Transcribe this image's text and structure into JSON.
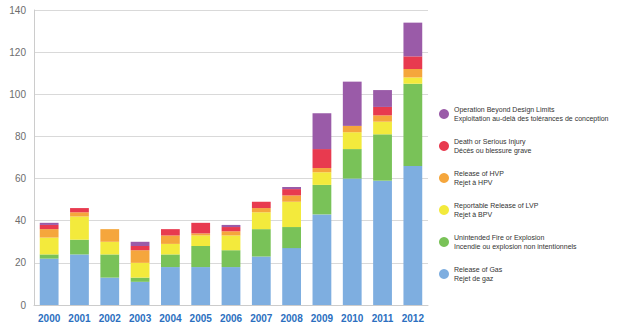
{
  "chart_data": {
    "type": "bar",
    "stacked": true,
    "grid": true,
    "legend": "right",
    "categories": [
      "2000",
      "2001",
      "2002",
      "2003",
      "2004",
      "2005",
      "2006",
      "2007",
      "2008",
      "2009",
      "2010",
      "2011",
      "2012"
    ],
    "ylim": [
      0,
      140
    ],
    "yticks": [
      0,
      20,
      40,
      60,
      80,
      100,
      120,
      140
    ],
    "series": [
      {
        "name": "Release of Gas\nRejet de gaz",
        "color": "#7eaee0",
        "values": [
          22,
          24,
          13,
          11,
          18,
          18,
          18,
          23,
          27,
          43,
          60,
          59,
          66
        ]
      },
      {
        "name": "Unintended Fire or Explosion\nIncendie ou explosion non intentionnels",
        "color": "#79c258",
        "values": [
          2,
          7,
          11,
          2,
          6,
          10,
          8,
          13,
          10,
          14,
          14,
          22,
          39
        ]
      },
      {
        "name": "Reportable Release of LVP\nRejet à BPV",
        "color": "#f3ea3c",
        "values": [
          8,
          11,
          6,
          7,
          5,
          5,
          7,
          8,
          12,
          6,
          8,
          6,
          3
        ]
      },
      {
        "name": "Release of HVP\nRejet à HPV",
        "color": "#f5a63c",
        "values": [
          4,
          2,
          6,
          6,
          4,
          1,
          2,
          2,
          3,
          2,
          3,
          3,
          4
        ]
      },
      {
        "name": "Death or Serious Injury\nDécès ou blessure grave",
        "color": "#e83a4f",
        "values": [
          2,
          2,
          0,
          2,
          3,
          5,
          2,
          3,
          3,
          9,
          0,
          4,
          6
        ]
      },
      {
        "name": "Operation Beyond Design Limits\nExploitation au-delà des tolérances de conception",
        "color": "#9a5ba8",
        "values": [
          1,
          0,
          0,
          2,
          0,
          0,
          1,
          0,
          1,
          17,
          21,
          8,
          16
        ]
      }
    ]
  }
}
